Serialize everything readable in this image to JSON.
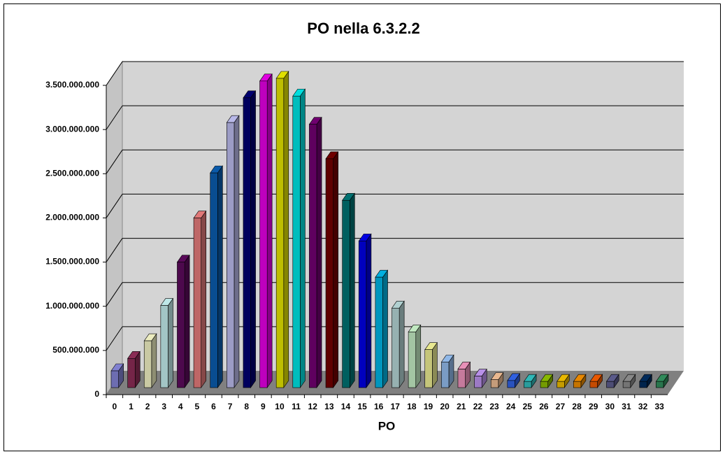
{
  "chart_data": {
    "type": "bar3d",
    "title": "PO nella 6.3.2.2",
    "x_label": "PO",
    "categories": [
      "0",
      "1",
      "2",
      "3",
      "4",
      "5",
      "6",
      "7",
      "8",
      "9",
      "10",
      "11",
      "12",
      "13",
      "14",
      "15",
      "16",
      "17",
      "18",
      "19",
      "20",
      "21",
      "22",
      "23",
      "24",
      "25",
      "26",
      "27",
      "28",
      "29",
      "30",
      "31",
      "32",
      "33"
    ],
    "values": [
      190000000,
      330000000,
      530000000,
      930000000,
      1420000000,
      1920000000,
      2430000000,
      3000000000,
      3280000000,
      3470000000,
      3500000000,
      3300000000,
      2980000000,
      2590000000,
      2120000000,
      1660000000,
      1250000000,
      900000000,
      630000000,
      430000000,
      290000000,
      210000000,
      130000000,
      90000000,
      80000000,
      70000000,
      70000000,
      70000000,
      70000000,
      70000000,
      70000000,
      70000000,
      70000000,
      70000000
    ],
    "colors": [
      "#8080d0",
      "#8a2c55",
      "#ececc0",
      "#bfe8e8",
      "#5a0a5a",
      "#e07878",
      "#0a5aaa",
      "#b8b8e8",
      "#00006e",
      "#e000e0",
      "#e0e000",
      "#00dede",
      "#700070",
      "#700000",
      "#007070",
      "#0000e0",
      "#00b0e0",
      "#b0d0d0",
      "#c0e8c0",
      "#e8e890",
      "#90b8e8",
      "#e890b8",
      "#b890e8",
      "#e8b890",
      "#3060e0",
      "#30b8b8",
      "#88b800",
      "#e8b800",
      "#e88800",
      "#e85800",
      "#5a5a8a",
      "#888888",
      "#002a5a",
      "#308a5a"
    ],
    "ylim": [
      0,
      3500000000
    ],
    "yticks": [
      0,
      {
        "value": 500000000,
        "label": "500.000.000"
      },
      {
        "value": 1000000000,
        "label": "1.000.000.000"
      },
      {
        "value": 1500000000,
        "label": "1.500.000.000"
      },
      {
        "value": 2000000000,
        "label": "2.000.000.000"
      },
      {
        "value": 2500000000,
        "label": "2.500.000.000"
      },
      {
        "value": 3000000000,
        "label": "3.000.000.000"
      },
      {
        "value": 3500000000,
        "label": "3.500.000.000"
      }
    ],
    "grid": true
  }
}
